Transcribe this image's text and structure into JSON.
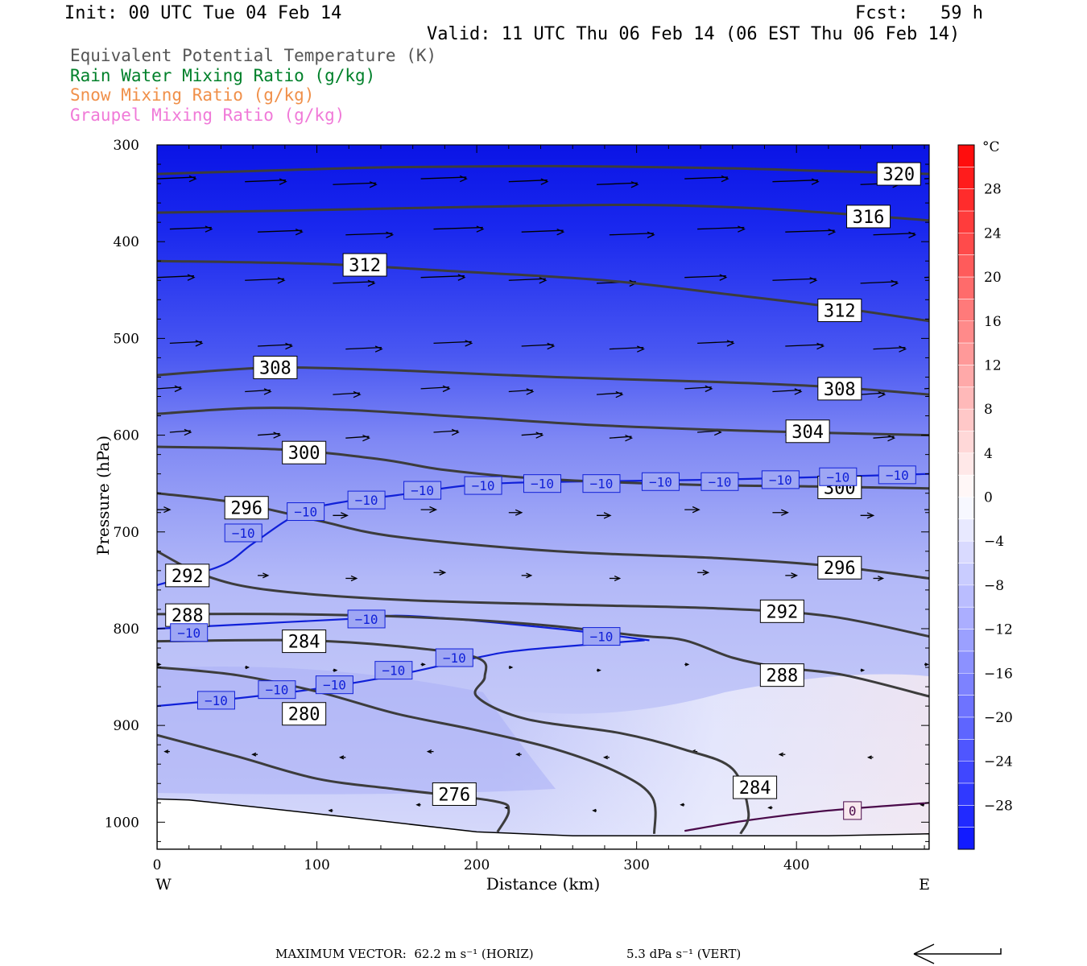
{
  "header": {
    "init": "Init: 00 UTC Tue 04 Feb 14",
    "fcst": "Fcst:   59 h",
    "valid": "Valid: 11 UTC Thu 06 Feb 14 (06 EST Thu 06 Feb 14)"
  },
  "legend": [
    {
      "label": "Equivalent Potential Temperature (K)",
      "color": "#555555"
    },
    {
      "label": "Rain Water Mixing Ratio (g/kg)",
      "color": "#00802a"
    },
    {
      "label": "Snow Mixing Ratio (g/kg)",
      "color": "#f0904a"
    },
    {
      "label": "Graupel Mixing Ratio (g/kg)",
      "color": "#f07ad8"
    }
  ],
  "footer": {
    "max_vector": "MAXIMUM VECTOR:  62.2 m s⁻¹ (HORIZ)",
    "vert": "5.3 dPa s⁻¹ (VERT)"
  },
  "chart_data": {
    "type": "cross-section",
    "xlabel": "Distance (km)",
    "ylabel": "Pressure (hPa)",
    "xlim": [
      0,
      483
    ],
    "ylim": [
      1028,
      300
    ],
    "x_ticks": [
      0,
      100,
      200,
      300,
      400
    ],
    "y_ticks": [
      300,
      400,
      500,
      600,
      700,
      800,
      900,
      1000
    ],
    "x_end_labels": {
      "left": "W",
      "right": "E"
    },
    "colorbar": {
      "unit": "°C",
      "labels": [
        "28",
        "24",
        "20",
        "16",
        "12",
        "8",
        "4",
        "0",
        "−4",
        "−8",
        "−12",
        "−16",
        "−20",
        "−24",
        "−28"
      ],
      "label_values": [
        28,
        24,
        20,
        16,
        12,
        8,
        4,
        0,
        -4,
        -8,
        -12,
        -16,
        -20,
        -24,
        -28
      ],
      "range": [
        -32,
        32
      ]
    },
    "theta_e_contours": [
      {
        "label": "320",
        "points": [
          [
            0,
            330
          ],
          [
            80,
            326
          ],
          [
            150,
            323
          ],
          [
            250,
            322
          ],
          [
            350,
            324
          ],
          [
            420,
            327
          ],
          [
            483,
            330
          ]
        ]
      },
      {
        "label": "316",
        "points": [
          [
            0,
            370
          ],
          [
            80,
            368
          ],
          [
            200,
            364
          ],
          [
            300,
            362
          ],
          [
            380,
            366
          ],
          [
            483,
            378
          ]
        ]
      },
      {
        "label": "312",
        "points": [
          [
            0,
            420
          ],
          [
            100,
            423
          ],
          [
            180,
            430
          ],
          [
            280,
            440
          ],
          [
            360,
            455
          ],
          [
            420,
            467
          ],
          [
            483,
            482
          ]
        ]
      },
      {
        "label": "308",
        "points": [
          [
            0,
            538
          ],
          [
            40,
            533
          ],
          [
            80,
            530
          ],
          [
            150,
            533
          ],
          [
            250,
            540
          ],
          [
            350,
            545
          ],
          [
            420,
            550
          ],
          [
            483,
            558
          ]
        ]
      },
      {
        "label": "304",
        "points": [
          [
            0,
            578
          ],
          [
            60,
            572
          ],
          [
            120,
            574
          ],
          [
            200,
            582
          ],
          [
            280,
            590
          ],
          [
            380,
            596
          ],
          [
            483,
            600
          ]
        ]
      },
      {
        "label": "300",
        "points": [
          [
            0,
            612
          ],
          [
            80,
            615
          ],
          [
            140,
            625
          ],
          [
            180,
            636
          ],
          [
            240,
            645
          ],
          [
            330,
            651
          ],
          [
            410,
            653
          ],
          [
            483,
            655
          ]
        ]
      },
      {
        "label": "296",
        "points": [
          [
            0,
            660
          ],
          [
            50,
            670
          ],
          [
            100,
            688
          ],
          [
            150,
            705
          ],
          [
            250,
            720
          ],
          [
            350,
            727
          ],
          [
            420,
            735
          ],
          [
            483,
            748
          ]
        ]
      },
      {
        "label": "292",
        "points": [
          [
            0,
            720
          ],
          [
            30,
            745
          ],
          [
            70,
            760
          ],
          [
            150,
            770
          ],
          [
            250,
            775
          ],
          [
            350,
            779
          ],
          [
            420,
            787
          ],
          [
            483,
            808
          ]
        ]
      },
      {
        "label": "288",
        "points": [
          [
            0,
            785
          ],
          [
            80,
            785
          ],
          [
            160,
            788
          ],
          [
            240,
            796
          ],
          [
            300,
            807
          ],
          [
            330,
            812
          ],
          [
            360,
            830
          ],
          [
            390,
            840
          ],
          [
            430,
            848
          ],
          [
            483,
            870
          ]
        ]
      },
      {
        "label": "284",
        "points": [
          [
            0,
            813
          ],
          [
            90,
            812
          ],
          [
            150,
            818
          ],
          [
            200,
            830
          ],
          [
            205,
            850
          ],
          [
            200,
            870
          ],
          [
            230,
            893
          ],
          [
            290,
            908
          ],
          [
            330,
            925
          ],
          [
            360,
            945
          ],
          [
            370,
            990
          ],
          [
            365,
            1012
          ]
        ]
      },
      {
        "label": "280",
        "points": [
          [
            0,
            840
          ],
          [
            50,
            848
          ],
          [
            100,
            865
          ],
          [
            150,
            888
          ],
          [
            200,
            905
          ],
          [
            250,
            925
          ],
          [
            290,
            950
          ],
          [
            310,
            975
          ],
          [
            311,
            1012
          ]
        ]
      },
      {
        "label": "276",
        "points": [
          [
            0,
            910
          ],
          [
            50,
            932
          ],
          [
            100,
            955
          ],
          [
            150,
            966
          ],
          [
            210,
            978
          ],
          [
            220,
            988
          ],
          [
            213,
            1010
          ]
        ]
      }
    ],
    "temperature_contours": [
      {
        "label": "−10",
        "points": [
          [
            0,
            880
          ],
          [
            50,
            872
          ],
          [
            100,
            862
          ],
          [
            150,
            848
          ],
          [
            200,
            830
          ],
          [
            230,
            822
          ],
          [
            305,
            812
          ]
        ]
      },
      {
        "label": "−10",
        "points": [
          [
            0,
            800
          ],
          [
            60,
            795
          ],
          [
            120,
            790
          ],
          [
            160,
            787
          ],
          [
            250,
            800
          ],
          [
            308,
            812
          ]
        ]
      },
      {
        "label": "−10",
        "points": [
          [
            0,
            755
          ],
          [
            40,
            735
          ],
          [
            60,
            712
          ],
          [
            90,
            680
          ],
          [
            120,
            668
          ],
          [
            150,
            662
          ],
          [
            200,
            651
          ],
          [
            260,
            648
          ],
          [
            350,
            646
          ],
          [
            420,
            643
          ],
          [
            483,
            640
          ]
        ]
      },
      {
        "label": "0",
        "points": [
          [
            330,
            1009
          ],
          [
            370,
            998
          ],
          [
            420,
            988
          ],
          [
            483,
            980
          ]
        ]
      }
    ],
    "label_positions_km_hpa": [
      {
        "text": "320",
        "x": 464,
        "y": 330
      },
      {
        "text": "316",
        "x": 445,
        "y": 374
      },
      {
        "text": "312",
        "x": 130,
        "y": 424
      },
      {
        "text": "312",
        "x": 427,
        "y": 471
      },
      {
        "text": "308",
        "x": 74,
        "y": 530
      },
      {
        "text": "308",
        "x": 427,
        "y": 552
      },
      {
        "text": "304",
        "x": 407,
        "y": 596
      },
      {
        "text": "300",
        "x": 92,
        "y": 618
      },
      {
        "text": "300",
        "x": 427,
        "y": 654
      },
      {
        "text": "296",
        "x": 56,
        "y": 675
      },
      {
        "text": "296",
        "x": 427,
        "y": 737
      },
      {
        "text": "292",
        "x": 19,
        "y": 745
      },
      {
        "text": "292",
        "x": 391,
        "y": 782
      },
      {
        "text": "288",
        "x": 19,
        "y": 786
      },
      {
        "text": "288",
        "x": 391,
        "y": 848
      },
      {
        "text": "284",
        "x": 92,
        "y": 813
      },
      {
        "text": "284",
        "x": 374,
        "y": 964
      },
      {
        "text": "280",
        "x": 92,
        "y": 888
      },
      {
        "text": "276",
        "x": 186,
        "y": 971
      }
    ],
    "temp_label_positions_km_hpa": [
      {
        "text": "−10",
        "x": 20,
        "y": 804
      },
      {
        "text": "−10",
        "x": 131,
        "y": 790
      },
      {
        "text": "−10",
        "x": 278,
        "y": 808
      },
      {
        "text": "−10",
        "x": 37,
        "y": 874
      },
      {
        "text": "−10",
        "x": 75,
        "y": 863
      },
      {
        "text": "−10",
        "x": 111,
        "y": 858
      },
      {
        "text": "−10",
        "x": 148,
        "y": 843
      },
      {
        "text": "−10",
        "x": 186,
        "y": 830
      },
      {
        "text": "−10",
        "x": 54,
        "y": 701
      },
      {
        "text": "−10",
        "x": 93,
        "y": 679
      },
      {
        "text": "−10",
        "x": 131,
        "y": 667
      },
      {
        "text": "−10",
        "x": 166,
        "y": 657
      },
      {
        "text": "−10",
        "x": 204,
        "y": 652
      },
      {
        "text": "−10",
        "x": 241,
        "y": 650
      },
      {
        "text": "−10",
        "x": 278,
        "y": 650
      },
      {
        "text": "−10",
        "x": 315,
        "y": 648
      },
      {
        "text": "−10",
        "x": 352,
        "y": 648
      },
      {
        "text": "−10",
        "x": 390,
        "y": 646
      },
      {
        "text": "−10",
        "x": 426,
        "y": 643
      },
      {
        "text": "−10",
        "x": 463,
        "y": 641
      },
      {
        "text": "0",
        "x": 435,
        "y": 988
      }
    ],
    "wind_vector_rows_hpa": [
      {
        "p": 338,
        "len": 48
      },
      {
        "p": 390,
        "len": 52
      },
      {
        "p": 440,
        "len": 46
      },
      {
        "p": 508,
        "len": 40
      },
      {
        "p": 555,
        "len": 30
      },
      {
        "p": 600,
        "len": 26
      },
      {
        "p": 680,
        "len": 16
      },
      {
        "p": 745,
        "len": 12
      },
      {
        "p": 840,
        "len": 4
      },
      {
        "p": 930,
        "len": -6
      },
      {
        "p": 985,
        "len": -4
      }
    ],
    "terrain_hpa": [
      [
        0,
        976
      ],
      [
        20,
        977
      ],
      [
        60,
        984
      ],
      [
        120,
        995
      ],
      [
        200,
        1010
      ],
      [
        260,
        1014
      ],
      [
        330,
        1014
      ],
      [
        420,
        1014
      ],
      [
        483,
        1012
      ]
    ]
  }
}
